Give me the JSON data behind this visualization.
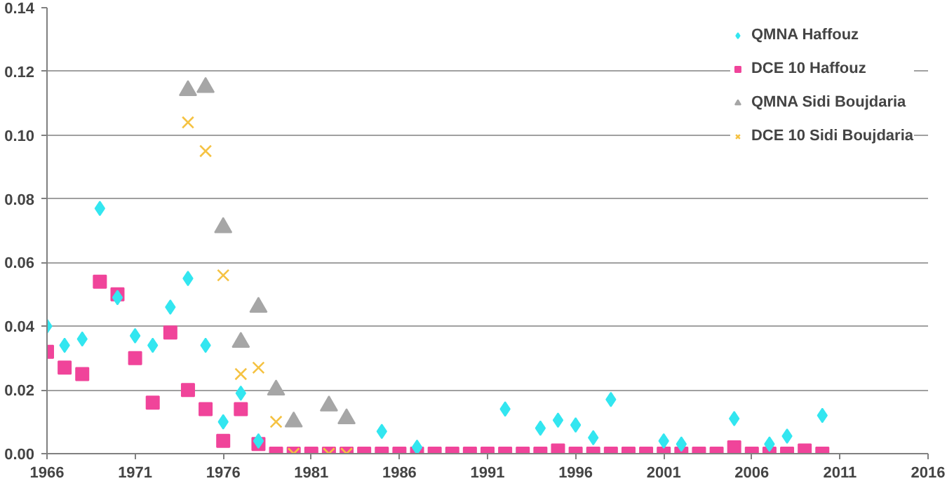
{
  "chart_data": {
    "type": "scatter",
    "xlim": [
      1966,
      2016
    ],
    "xticks": [
      1966,
      1971,
      1976,
      1981,
      1986,
      1991,
      1996,
      2001,
      2006,
      2011,
      2016
    ],
    "ylim": [
      0,
      0.14
    ],
    "yticks": [
      {
        "value": 0,
        "label": "0.00"
      },
      {
        "value": 0.02,
        "label": "0.02"
      },
      {
        "value": 0.04,
        "label": "0.04"
      },
      {
        "value": 0.06,
        "label": "0.06"
      },
      {
        "value": 0.08,
        "label": "0.08"
      },
      {
        "value": 0.1,
        "label": "0.10"
      },
      {
        "value": 0.12,
        "label": "0.12"
      },
      {
        "value": 0.14,
        "label": "0.14"
      }
    ],
    "grid": "y",
    "legend": "top right",
    "series": [
      {
        "name": "QMNA Haffouz",
        "color": "#33e6f0",
        "marker": "diamond",
        "x": [
          1966,
          1967,
          1968,
          1969,
          1970,
          1971,
          1972,
          1973,
          1974,
          1975,
          1976,
          1977,
          1978,
          1985,
          1987,
          1992,
          1994,
          1995,
          1996,
          1997,
          1998,
          2001,
          2002,
          2005,
          2007,
          2008,
          2010
        ],
        "values": [
          0.04,
          0.034,
          0.036,
          0.077,
          0.049,
          0.037,
          0.034,
          0.046,
          0.055,
          0.034,
          0.01,
          0.019,
          0.004,
          0.007,
          0.002,
          0.014,
          0.008,
          0.0105,
          0.009,
          0.005,
          0.017,
          0.004,
          0.003,
          0.011,
          0.003,
          0.0055,
          0.012
        ]
      },
      {
        "name": "DCE 10 Haffouz",
        "color": "#f0449a",
        "marker": "square",
        "x": [
          1966,
          1967,
          1968,
          1969,
          1970,
          1971,
          1972,
          1973,
          1974,
          1975,
          1976,
          1977,
          1978,
          1979,
          1980,
          1981,
          1982,
          1983,
          1984,
          1985,
          1986,
          1987,
          1988,
          1989,
          1990,
          1991,
          1992,
          1993,
          1994,
          1995,
          1996,
          1997,
          1998,
          1999,
          2000,
          2001,
          2002,
          2003,
          2004,
          2005,
          2006,
          2007,
          2008,
          2009,
          2010
        ],
        "values": [
          0.032,
          0.027,
          0.025,
          0.054,
          0.05,
          0.03,
          0.016,
          0.038,
          0.02,
          0.014,
          0.004,
          0.014,
          0.003,
          0,
          0,
          0,
          0,
          0,
          0,
          0,
          0,
          0,
          0,
          0,
          0,
          0,
          0,
          0,
          0,
          0.001,
          0,
          0,
          0,
          0,
          0,
          0,
          0,
          0,
          0,
          0.002,
          0,
          0,
          0,
          0.001,
          0
        ]
      },
      {
        "name": "QMNA Sidi Boujdaria",
        "color": "#a6a6a6",
        "marker": "triangle",
        "x": [
          1974,
          1975,
          1976,
          1977,
          1978,
          1979,
          1980,
          1982,
          1983
        ],
        "values": [
          0.114,
          0.115,
          0.071,
          0.035,
          0.046,
          0.02,
          0.01,
          0.015,
          0.011
        ]
      },
      {
        "name": "DCE 10 Sidi Boujdaria",
        "color": "#f5c242",
        "marker": "x",
        "x": [
          1974,
          1975,
          1976,
          1977,
          1978,
          1979,
          1980,
          1982,
          1983
        ],
        "values": [
          0.104,
          0.095,
          0.056,
          0.025,
          0.027,
          0.01,
          0,
          0,
          0
        ]
      }
    ]
  }
}
